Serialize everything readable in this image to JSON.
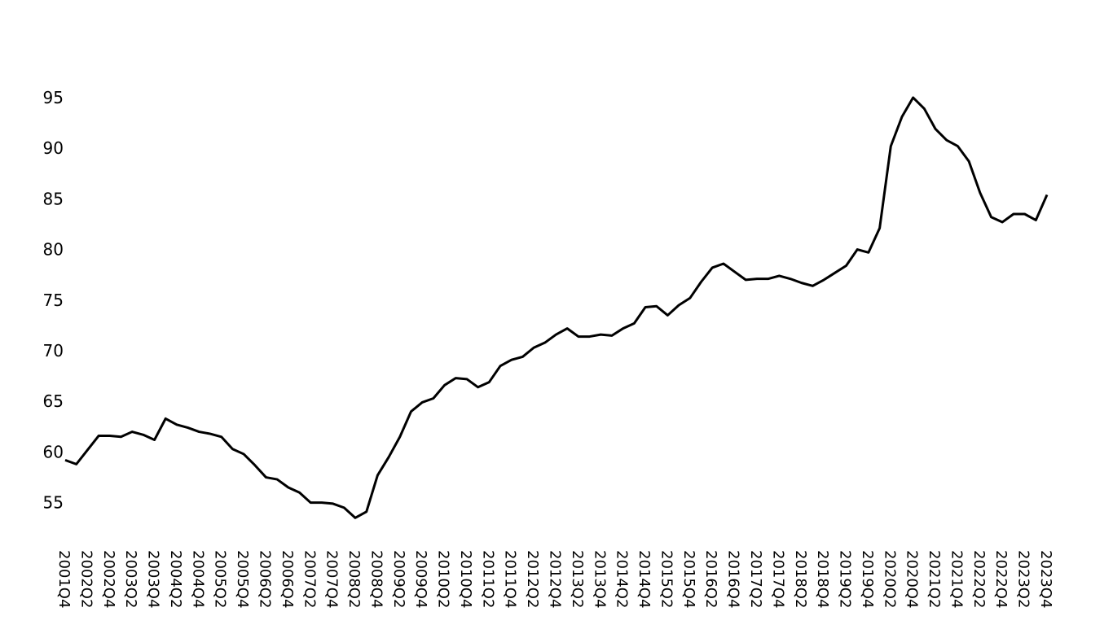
{
  "chart_data": {
    "type": "line",
    "title": "",
    "xlabel": "",
    "ylabel": "",
    "ylim": [
      52,
      97
    ],
    "yticks": [
      55,
      60,
      65,
      70,
      75,
      80,
      85,
      90,
      95
    ],
    "grid": false,
    "line_color": "#000000",
    "x": [
      "2001Q4",
      "2002Q1",
      "2002Q2",
      "2002Q3",
      "2002Q4",
      "2003Q1",
      "2003Q2",
      "2003Q3",
      "2003Q4",
      "2004Q1",
      "2004Q2",
      "2004Q3",
      "2004Q4",
      "2005Q1",
      "2005Q2",
      "2005Q3",
      "2005Q4",
      "2006Q1",
      "2006Q2",
      "2006Q3",
      "2006Q4",
      "2007Q1",
      "2007Q2",
      "2007Q3",
      "2007Q4",
      "2008Q1",
      "2008Q2",
      "2008Q3",
      "2008Q4",
      "2009Q1",
      "2009Q2",
      "2009Q3",
      "2009Q4",
      "2010Q1",
      "2010Q2",
      "2010Q3",
      "2010Q4",
      "2011Q1",
      "2011Q2",
      "2011Q3",
      "2011Q4",
      "2012Q1",
      "2012Q2",
      "2012Q3",
      "2012Q4",
      "2013Q1",
      "2013Q2",
      "2013Q3",
      "2013Q4",
      "2014Q1",
      "2014Q2",
      "2014Q3",
      "2014Q4",
      "2015Q1",
      "2015Q2",
      "2015Q3",
      "2015Q4",
      "2016Q1",
      "2016Q2",
      "2016Q3",
      "2016Q4",
      "2017Q1",
      "2017Q2",
      "2017Q3",
      "2017Q4",
      "2018Q1",
      "2018Q2",
      "2018Q3",
      "2018Q4",
      "2019Q1",
      "2019Q2",
      "2019Q3",
      "2019Q4",
      "2020Q1",
      "2020Q2",
      "2020Q3",
      "2020Q4",
      "2021Q1",
      "2021Q2",
      "2021Q3",
      "2021Q4",
      "2022Q1",
      "2022Q2",
      "2022Q3",
      "2022Q4",
      "2023Q1",
      "2023Q2",
      "2023Q3",
      "2023Q4"
    ],
    "x_tick_labels": [
      "2001Q4",
      "2002Q2",
      "2002Q4",
      "2003Q2",
      "2003Q4",
      "2004Q2",
      "2004Q4",
      "2005Q2",
      "2005Q4",
      "2006Q2",
      "2006Q4",
      "2007Q2",
      "2007Q4",
      "2008Q2",
      "2008Q4",
      "2009Q2",
      "2009Q4",
      "2010Q2",
      "2010Q4",
      "2011Q2",
      "2011Q4",
      "2012Q2",
      "2012Q4",
      "2013Q2",
      "2013Q4",
      "2014Q2",
      "2014Q4",
      "2015Q2",
      "2015Q4",
      "2016Q2",
      "2016Q4",
      "2017Q2",
      "2017Q4",
      "2018Q2",
      "2018Q4",
      "2019Q2",
      "2019Q4",
      "2020Q2",
      "2020Q4",
      "2021Q2",
      "2021Q4",
      "2022Q2",
      "2022Q4",
      "2023Q2",
      "2023Q4"
    ],
    "series": [
      {
        "values": [
          59.2,
          58.8,
          60.2,
          61.6,
          61.6,
          61.5,
          62.0,
          61.7,
          61.2,
          63.3,
          62.7,
          62.4,
          62.0,
          61.8,
          61.5,
          60.3,
          59.8,
          58.7,
          57.5,
          57.3,
          56.5,
          56.0,
          55.0,
          55.0,
          54.9,
          54.5,
          53.5,
          54.1,
          57.7,
          59.5,
          61.5,
          64.0,
          64.9,
          65.3,
          66.6,
          67.3,
          67.2,
          66.4,
          66.9,
          68.5,
          69.1,
          69.4,
          70.3,
          70.8,
          71.6,
          72.2,
          71.4,
          71.4,
          71.6,
          71.5,
          72.2,
          72.7,
          74.3,
          74.4,
          73.5,
          74.5,
          75.2,
          76.8,
          78.2,
          78.6,
          77.8,
          77.0,
          77.1,
          77.1,
          77.4,
          77.1,
          76.7,
          76.4,
          77.0,
          77.7,
          78.4,
          80.0,
          79.7,
          82.1,
          90.2,
          93.1,
          95.0,
          93.9,
          91.9,
          90.8,
          90.2,
          88.7,
          85.6,
          83.2,
          82.7,
          83.5,
          83.5,
          82.9,
          85.4
        ]
      }
    ]
  }
}
